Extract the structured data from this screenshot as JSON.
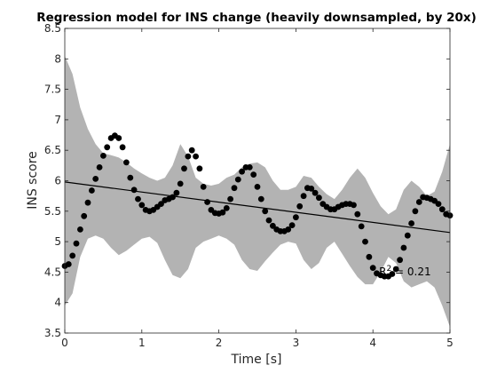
{
  "chart_data": {
    "type": "scatter",
    "title": "Regression model for INS change (heavily downsampled, by 20x)",
    "xlabel": "Time [s]",
    "ylabel": "INS score",
    "xlim": [
      0,
      5
    ],
    "ylim": [
      3.5,
      8.5
    ],
    "xticks": [
      0,
      1,
      2,
      3,
      4,
      5
    ],
    "xtick_labels": [
      "0",
      "1",
      "2",
      "3",
      "4",
      "5"
    ],
    "yticks": [
      3.5,
      4,
      4.5,
      5,
      5.5,
      6,
      6.5,
      7,
      7.5,
      8,
      8.5
    ],
    "ytick_labels": [
      "3.5",
      "4",
      "4.5",
      "5",
      "5.5",
      "6",
      "6.5",
      "7",
      "7.5",
      "8",
      "8.5"
    ],
    "grid": false,
    "colors": {
      "band": "#b3b3b3",
      "points": "#000000",
      "line": "#000000",
      "axis": "#262626"
    },
    "series": [
      {
        "x": [
          0.0,
          0.05,
          0.1,
          0.15,
          0.2,
          0.25,
          0.3,
          0.35,
          0.4,
          0.45,
          0.5,
          0.55,
          0.6,
          0.65,
          0.7,
          0.75,
          0.8,
          0.85,
          0.9,
          0.95,
          1.0,
          1.05,
          1.1,
          1.15,
          1.2,
          1.25,
          1.3,
          1.35,
          1.4,
          1.45,
          1.5,
          1.55,
          1.6,
          1.65,
          1.7,
          1.75,
          1.8,
          1.85,
          1.9,
          1.95,
          2.0,
          2.05,
          2.1,
          2.15,
          2.2,
          2.25,
          2.3,
          2.35,
          2.4,
          2.45,
          2.5,
          2.55,
          2.6,
          2.65,
          2.7,
          2.75,
          2.8,
          2.85,
          2.9,
          2.95,
          3.0,
          3.05,
          3.1,
          3.15,
          3.2,
          3.25,
          3.3,
          3.35,
          3.4,
          3.45,
          3.5,
          3.55,
          3.6,
          3.65,
          3.7,
          3.75,
          3.8,
          3.85,
          3.9,
          3.95,
          4.0,
          4.05,
          4.1,
          4.15,
          4.2,
          4.25,
          4.3,
          4.35,
          4.4,
          4.45,
          4.5,
          4.55,
          4.6,
          4.65,
          4.7,
          4.75,
          4.8,
          4.85,
          4.9,
          4.95,
          5.0
        ],
        "y": [
          4.6,
          4.63,
          4.77,
          4.97,
          5.2,
          5.42,
          5.64,
          5.84,
          6.03,
          6.22,
          6.41,
          6.55,
          6.7,
          6.74,
          6.7,
          6.55,
          6.3,
          6.05,
          5.85,
          5.7,
          5.6,
          5.52,
          5.5,
          5.52,
          5.57,
          5.62,
          5.68,
          5.7,
          5.73,
          5.8,
          5.95,
          6.2,
          6.4,
          6.5,
          6.4,
          6.2,
          5.9,
          5.65,
          5.52,
          5.47,
          5.46,
          5.48,
          5.55,
          5.7,
          5.88,
          6.02,
          6.15,
          6.22,
          6.22,
          6.1,
          5.9,
          5.7,
          5.5,
          5.35,
          5.26,
          5.2,
          5.17,
          5.17,
          5.2,
          5.27,
          5.4,
          5.58,
          5.75,
          5.88,
          5.87,
          5.8,
          5.72,
          5.62,
          5.57,
          5.53,
          5.53,
          5.57,
          5.6,
          5.62,
          5.62,
          5.6,
          5.45,
          5.25,
          5.0,
          4.75,
          4.57,
          4.48,
          4.45,
          4.43,
          4.43,
          4.47,
          4.55,
          4.7,
          4.9,
          5.1,
          5.3,
          5.5,
          5.65,
          5.73,
          5.72,
          5.7,
          5.67,
          5.62,
          5.53,
          5.45,
          5.43
        ]
      }
    ],
    "regression_line": {
      "x": [
        0,
        5
      ],
      "y": [
        5.98,
        5.15
      ]
    },
    "band": {
      "x": [
        0.0,
        0.1,
        0.2,
        0.3,
        0.4,
        0.5,
        0.6,
        0.7,
        0.8,
        0.9,
        1.0,
        1.1,
        1.2,
        1.3,
        1.4,
        1.5,
        1.6,
        1.7,
        1.8,
        1.9,
        2.0,
        2.1,
        2.2,
        2.3,
        2.4,
        2.5,
        2.6,
        2.7,
        2.8,
        2.9,
        3.0,
        3.1,
        3.2,
        3.3,
        3.4,
        3.5,
        3.6,
        3.7,
        3.8,
        3.9,
        4.0,
        4.1,
        4.2,
        4.3,
        4.4,
        4.5,
        4.6,
        4.7,
        4.8,
        4.9,
        5.0
      ],
      "upper": [
        8.05,
        7.75,
        7.2,
        6.85,
        6.6,
        6.45,
        6.42,
        6.38,
        6.3,
        6.2,
        6.12,
        6.05,
        6.0,
        6.05,
        6.25,
        6.6,
        6.4,
        6.05,
        5.95,
        5.92,
        5.95,
        6.05,
        6.1,
        6.22,
        6.28,
        6.3,
        6.22,
        6.0,
        5.85,
        5.85,
        5.9,
        6.08,
        6.05,
        5.9,
        5.78,
        5.7,
        5.85,
        6.05,
        6.2,
        6.05,
        5.8,
        5.58,
        5.45,
        5.53,
        5.85,
        6.0,
        5.9,
        5.75,
        5.82,
        6.15,
        6.6
      ],
      "lower": [
        3.95,
        4.15,
        4.75,
        5.05,
        5.1,
        5.05,
        4.9,
        4.78,
        4.85,
        4.95,
        5.05,
        5.08,
        4.98,
        4.7,
        4.45,
        4.4,
        4.55,
        4.9,
        5.0,
        5.05,
        5.1,
        5.05,
        4.95,
        4.7,
        4.55,
        4.52,
        4.68,
        4.82,
        4.95,
        5.0,
        4.97,
        4.7,
        4.55,
        4.65,
        4.9,
        5.0,
        4.8,
        4.6,
        4.42,
        4.3,
        4.3,
        4.5,
        4.75,
        4.65,
        4.35,
        4.25,
        4.3,
        4.35,
        4.25,
        3.95,
        3.6
      ]
    },
    "annotation": {
      "text": "R",
      "superscript": "2",
      "suffix": " = 0.21",
      "x": 4.08,
      "y": 4.45
    }
  }
}
